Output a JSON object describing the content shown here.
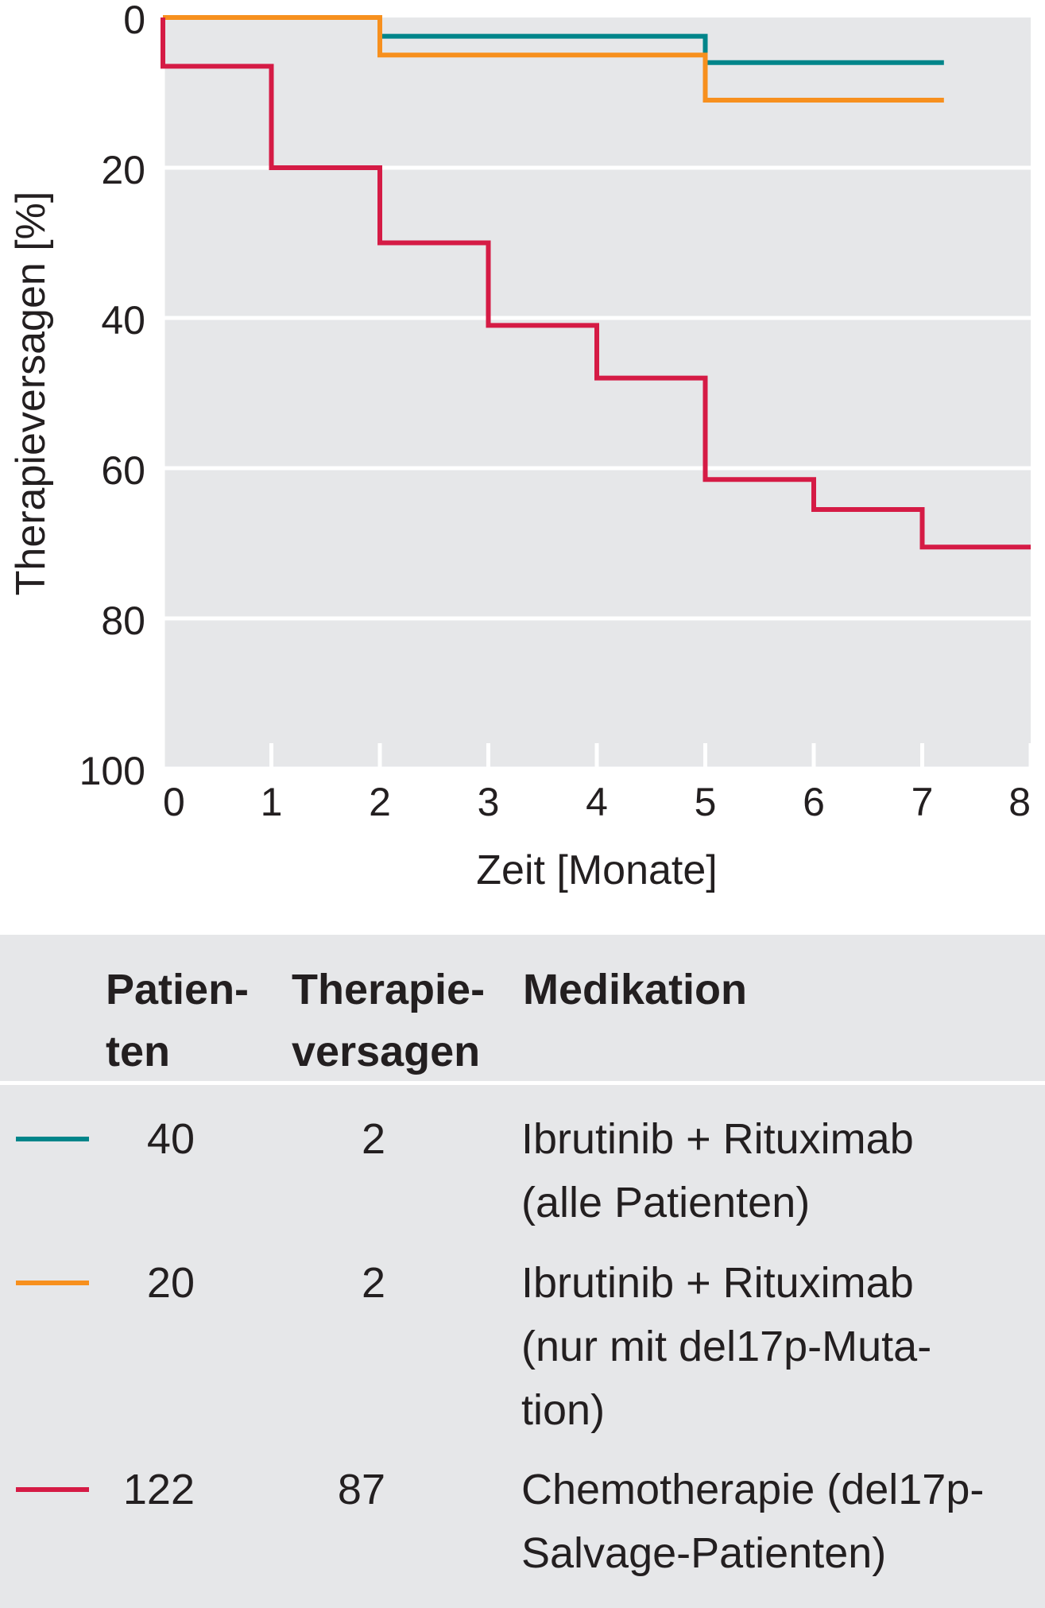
{
  "chart_data": {
    "type": "line",
    "step": true,
    "title": "",
    "xlabel": "Zeit [Monate]",
    "ylabel": "Therapieversagen [%]",
    "xlim": [
      0,
      8
    ],
    "ylim": [
      0,
      100
    ],
    "y_inverted": true,
    "x_ticks": [
      "0",
      "1",
      "2",
      "3",
      "4",
      "5",
      "6",
      "7",
      "8"
    ],
    "y_ticks": [
      "0",
      "20",
      "40",
      "60",
      "80",
      "100"
    ],
    "grid": "horizontal",
    "background": "#e6e7e9",
    "series": [
      {
        "color": "#00858a",
        "x": [
          0,
          2,
          2,
          5,
          5,
          7.2
        ],
        "y": [
          0,
          0,
          2.5,
          2.5,
          6,
          6
        ]
      },
      {
        "color": "#f7901e",
        "x": [
          0,
          2,
          2,
          5,
          5,
          7.2
        ],
        "y": [
          0,
          0,
          5,
          5,
          11,
          11
        ]
      },
      {
        "color": "#d51b45",
        "x": [
          0,
          0,
          1,
          1,
          2,
          2,
          3,
          3,
          4,
          4,
          5,
          5,
          6,
          6,
          7,
          7,
          8
        ],
        "y": [
          0,
          6.5,
          6.5,
          20,
          20,
          30,
          30,
          41,
          41,
          48,
          48,
          61.5,
          61.5,
          65.5,
          65.5,
          70.5,
          70.5
        ]
      }
    ]
  },
  "legend": {
    "headers": {
      "patienten": [
        "Patien-",
        "ten"
      ],
      "therapieversagen": [
        "Therapie-",
        "versagen"
      ],
      "medikation": [
        "Medikation"
      ]
    },
    "rows": [
      {
        "color": "#00858a",
        "patienten": "40",
        "therapieversagen": "2",
        "medikation": [
          "Ibrutinib + Rituximab",
          "(alle Patienten)"
        ]
      },
      {
        "color": "#f7901e",
        "patienten": "20",
        "therapieversagen": "2",
        "medikation": [
          "Ibrutinib + Rituximab",
          "(nur mit del17p-Muta-",
          "tion)"
        ]
      },
      {
        "color": "#d51b45",
        "patienten": "122",
        "therapieversagen": "87",
        "medikation": [
          "Chemotherapie (del17p-",
          "Salvage-Patienten)"
        ]
      }
    ]
  }
}
